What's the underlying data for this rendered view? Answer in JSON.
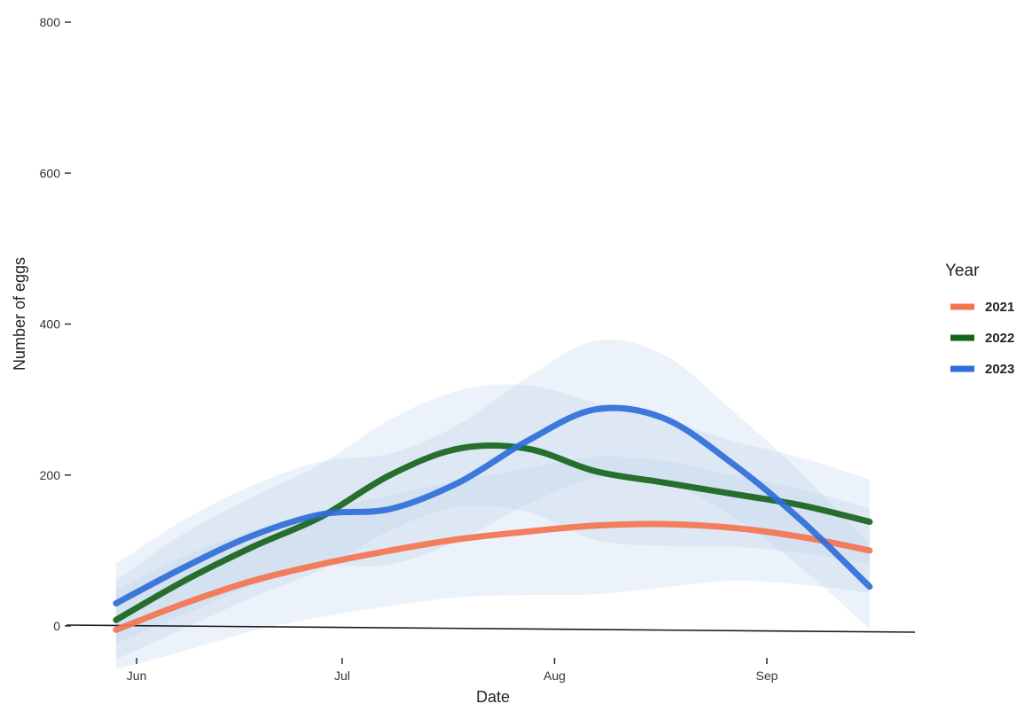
{
  "chart_data": {
    "type": "line",
    "xlabel": "Date",
    "ylabel": "Number of eggs",
    "ylim": [
      0,
      800
    ],
    "yticks": [
      0,
      200,
      400,
      600,
      800
    ],
    "xlim": [
      "2021-05-25",
      "2021-09-23"
    ],
    "xticks": [
      {
        "date": "2021-06-01",
        "label": "Jun"
      },
      {
        "date": "2021-07-01",
        "label": "Jul"
      },
      {
        "date": "2021-08-01",
        "label": "Aug"
      },
      {
        "date": "2021-09-01",
        "label": "Sep"
      }
    ],
    "grid": false,
    "legend": {
      "title": "Year",
      "position": "right"
    },
    "series": [
      {
        "name": "2021",
        "color": "#f4734f",
        "x": [
          "2021-05-29",
          "2021-06-08",
          "2021-06-18",
          "2021-06-28",
          "2021-07-08",
          "2021-07-18",
          "2021-07-28",
          "2021-08-07",
          "2021-08-17",
          "2021-08-27",
          "2021-09-06",
          "2021-09-16"
        ],
        "y": [
          -5,
          30,
          60,
          82,
          100,
          115,
          125,
          133,
          135,
          130,
          118,
          100
        ]
      },
      {
        "name": "2022",
        "color": "#17641c",
        "x": [
          "2021-05-29",
          "2021-06-08",
          "2021-06-18",
          "2021-06-28",
          "2021-07-08",
          "2021-07-18",
          "2021-07-28",
          "2021-08-07",
          "2021-08-17",
          "2021-08-27",
          "2021-09-06",
          "2021-09-16"
        ],
        "y": [
          8,
          60,
          105,
          145,
          200,
          235,
          235,
          205,
          190,
          175,
          160,
          138
        ]
      },
      {
        "name": "2023",
        "color": "#2f6ed8",
        "x": [
          "2021-05-29",
          "2021-06-08",
          "2021-06-18",
          "2021-06-28",
          "2021-07-08",
          "2021-07-18",
          "2021-07-28",
          "2021-08-07",
          "2021-08-17",
          "2021-08-27",
          "2021-09-06",
          "2021-09-16"
        ],
        "y": [
          30,
          78,
          120,
          148,
          155,
          190,
          245,
          287,
          275,
          215,
          140,
          52
        ]
      }
    ]
  }
}
